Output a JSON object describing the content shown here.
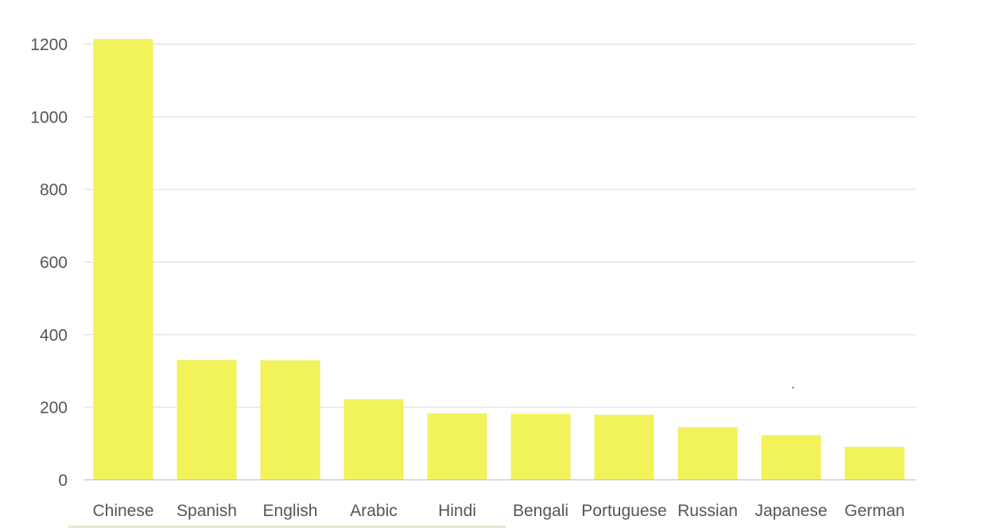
{
  "chart_data": {
    "type": "bar",
    "title": "",
    "xlabel": "",
    "ylabel": "",
    "categories": [
      "Chinese",
      "Spanish",
      "English",
      "Arabic",
      "Hindi",
      "Bengali",
      "Portuguese",
      "Russian",
      "Japanese",
      "German"
    ],
    "values": [
      1213,
      329,
      328,
      221,
      182,
      181,
      178,
      144,
      122,
      90
    ],
    "ylim": [
      0,
      1200
    ],
    "yticks": [
      "0",
      "200",
      "400",
      "600",
      "800",
      "1000",
      "1200"
    ],
    "grid": "horizontal",
    "legend": "none",
    "bar_color": "#f2f25a"
  }
}
